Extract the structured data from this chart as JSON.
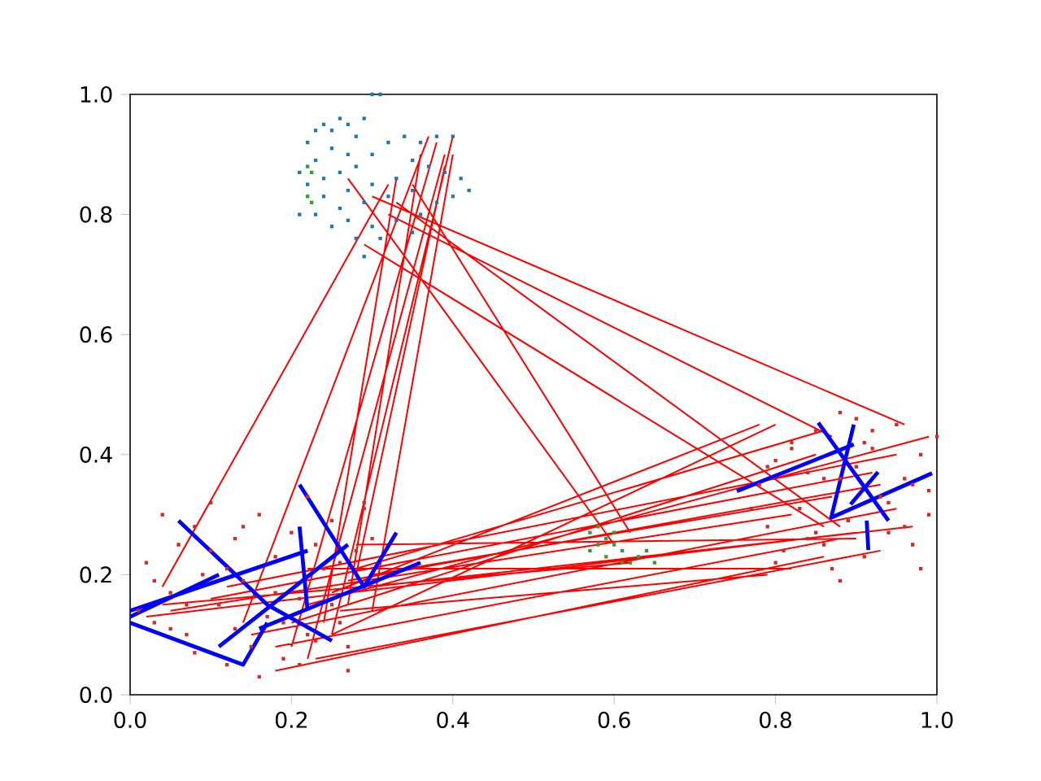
{
  "chart_data": {
    "type": "scatter",
    "xlim": [
      0,
      1
    ],
    "ylim": [
      0,
      1
    ],
    "xticks": [
      {
        "value": 0,
        "label": "0.0"
      },
      0.2,
      0.4,
      0.6,
      0.8,
      {
        "value": 1,
        "label": "1.0"
      }
    ],
    "yticks": [
      {
        "value": 0,
        "label": "0.0"
      },
      0.2,
      0.4,
      0.6,
      0.8,
      {
        "value": 1,
        "label": "1.0"
      }
    ],
    "series": [
      {
        "marker": "square",
        "color": "#1f77b4",
        "x": [
          0.3,
          0.31,
          0.22,
          0.23,
          0.24,
          0.25,
          0.26,
          0.27,
          0.28,
          0.29,
          0.25,
          0.27,
          0.23,
          0.21,
          0.24,
          0.26,
          0.28,
          0.3,
          0.32,
          0.34,
          0.36,
          0.38,
          0.4,
          0.35,
          0.37,
          0.39,
          0.41,
          0.33,
          0.3,
          0.27,
          0.24,
          0.22,
          0.21,
          0.23,
          0.26,
          0.29,
          0.32,
          0.35,
          0.38,
          0.4,
          0.42,
          0.33,
          0.3,
          0.27,
          0.35,
          0.31,
          0.28,
          0.36,
          0.25,
          0.29
        ],
        "values": [
          1.0,
          1.0,
          0.92,
          0.94,
          0.95,
          0.94,
          0.96,
          0.95,
          0.93,
          0.96,
          0.91,
          0.9,
          0.89,
          0.87,
          0.86,
          0.87,
          0.88,
          0.9,
          0.92,
          0.93,
          0.92,
          0.93,
          0.93,
          0.89,
          0.88,
          0.87,
          0.86,
          0.86,
          0.85,
          0.84,
          0.83,
          0.85,
          0.8,
          0.8,
          0.81,
          0.82,
          0.83,
          0.84,
          0.82,
          0.83,
          0.84,
          0.79,
          0.78,
          0.79,
          0.77,
          0.76,
          0.76,
          0.8,
          0.78,
          0.73
        ]
      },
      {
        "marker": "square",
        "color": "#d62728",
        "x": [
          0.01,
          0.02,
          0.03,
          0.04,
          0.05,
          0.06,
          0.07,
          0.08,
          0.09,
          0.1,
          0.11,
          0.12,
          0.13,
          0.14,
          0.15,
          0.16,
          0.17,
          0.18,
          0.19,
          0.2,
          0.21,
          0.22,
          0.23,
          0.24,
          0.25,
          0.26,
          0.27,
          0.28,
          0.29,
          0.3,
          0.31,
          0.05,
          0.08,
          0.12,
          0.16,
          0.19,
          0.23,
          0.27,
          0.3,
          0.1,
          0.14,
          0.18,
          0.22,
          0.26,
          0.03,
          0.07,
          0.13,
          0.21,
          0.25,
          0.29,
          0.78,
          0.79,
          0.8,
          0.81,
          0.82,
          0.83,
          0.84,
          0.85,
          0.86,
          0.87,
          0.88,
          0.89,
          0.9,
          0.91,
          0.92,
          0.93,
          0.94,
          0.95,
          0.96,
          0.97,
          0.98,
          0.99,
          1.0,
          0.77,
          0.8,
          0.84,
          0.88,
          0.92,
          0.96,
          0.99,
          0.82,
          0.86,
          0.9,
          0.94,
          0.98,
          0.79,
          0.85,
          0.91,
          0.97,
          0.88
        ],
        "values": [
          0.14,
          0.22,
          0.12,
          0.3,
          0.17,
          0.25,
          0.1,
          0.28,
          0.2,
          0.32,
          0.15,
          0.05,
          0.26,
          0.19,
          0.08,
          0.3,
          0.13,
          0.23,
          0.06,
          0.27,
          0.16,
          0.33,
          0.09,
          0.21,
          0.29,
          0.12,
          0.04,
          0.24,
          0.31,
          0.18,
          0.14,
          0.11,
          0.07,
          0.21,
          0.03,
          0.12,
          0.25,
          0.08,
          0.26,
          0.24,
          0.28,
          0.17,
          0.1,
          0.22,
          0.19,
          0.15,
          0.11,
          0.05,
          0.15,
          0.32,
          0.35,
          0.28,
          0.39,
          0.24,
          0.42,
          0.31,
          0.26,
          0.44,
          0.36,
          0.21,
          0.47,
          0.29,
          0.38,
          0.23,
          0.41,
          0.33,
          0.27,
          0.45,
          0.36,
          0.25,
          0.4,
          0.3,
          0.43,
          0.31,
          0.22,
          0.37,
          0.19,
          0.44,
          0.28,
          0.34,
          0.41,
          0.25,
          0.46,
          0.32,
          0.21,
          0.38,
          0.27,
          0.42,
          0.35,
          0.36
        ]
      },
      {
        "marker": "square",
        "color": "#2ca02c",
        "x": [
          0.22,
          0.225,
          0.22,
          0.225,
          0.57,
          0.58,
          0.59,
          0.6,
          0.61,
          0.59,
          0.62,
          0.63,
          0.64,
          0.6,
          0.58,
          0.61,
          0.65,
          0.57
        ],
        "values": [
          0.88,
          0.87,
          0.83,
          0.82,
          0.27,
          0.28,
          0.26,
          0.25,
          0.24,
          0.23,
          0.22,
          0.23,
          0.24,
          0.27,
          0.25,
          0.22,
          0.22,
          0.24
        ]
      },
      {
        "type": "line",
        "color": "#ff0000",
        "x": [
          0.04,
          0.32,
          null,
          0.14,
          0.37,
          null,
          0.2,
          0.38,
          null,
          0.22,
          0.39,
          null,
          0.25,
          0.4,
          null,
          0.27,
          0.36,
          null,
          0.28,
          0.39,
          null,
          0.24,
          0.33,
          null,
          0.3,
          0.4,
          null,
          0.3,
          0.96,
          null,
          0.32,
          0.87,
          null,
          0.27,
          0.6,
          null,
          0.33,
          0.88,
          null,
          0.35,
          0.62,
          null,
          0.29,
          0.86,
          null,
          0.02,
          0.9,
          null,
          0.05,
          0.82,
          null,
          0.1,
          0.92,
          null,
          0.15,
          0.95,
          null,
          0.18,
          0.88,
          null,
          0.2,
          0.85,
          null,
          0.22,
          0.99,
          null,
          0.25,
          0.78,
          null,
          0.27,
          0.93,
          null,
          0.28,
          0.86,
          null,
          0.3,
          0.97,
          null,
          0.23,
          0.93,
          null,
          0.18,
          0.86,
          null,
          0.12,
          0.95,
          null,
          0.25,
          0.8,
          null,
          0.28,
          0.9,
          null,
          0.04,
          0.62,
          null,
          0.22,
          0.82,
          null,
          0.3,
          0.87,
          null,
          0.26,
          0.79
        ],
        "values": [
          0.18,
          0.85,
          null,
          0.12,
          0.93,
          null,
          0.08,
          0.92,
          null,
          0.06,
          0.9,
          null,
          0.1,
          0.93,
          null,
          0.15,
          0.9,
          null,
          0.2,
          0.88,
          null,
          0.12,
          0.86,
          null,
          0.14,
          0.9,
          null,
          0.83,
          0.45,
          null,
          0.8,
          0.43,
          null,
          0.86,
          0.25,
          null,
          0.82,
          0.28,
          null,
          0.85,
          0.27,
          null,
          0.75,
          0.28,
          null,
          0.13,
          0.27,
          null,
          0.14,
          0.3,
          null,
          0.16,
          0.37,
          null,
          0.1,
          0.31,
          null,
          0.08,
          0.26,
          null,
          0.12,
          0.4,
          null,
          0.15,
          0.43,
          null,
          0.17,
          0.45,
          null,
          0.19,
          0.35,
          null,
          0.21,
          0.44,
          null,
          0.18,
          0.28,
          null,
          0.06,
          0.24,
          null,
          0.04,
          0.23,
          null,
          0.18,
          0.4,
          null,
          0.1,
          0.45,
          null,
          0.25,
          0.26,
          null,
          0.15,
          0.22,
          null,
          0.21,
          0.21,
          null,
          0.2,
          0.33,
          null,
          0.14,
          0.2
        ]
      },
      {
        "type": "line",
        "color": "#0000ff",
        "x": [
          0.0,
          0.14,
          0.17,
          null,
          0.0,
          0.22,
          null,
          0.06,
          0.17,
          0.25,
          null,
          0.21,
          0.29,
          0.33,
          null,
          0.11,
          0.0,
          null,
          0.11,
          0.27,
          null,
          0.21,
          0.22,
          null,
          0.16,
          0.36,
          null,
          0.853,
          0.94,
          null,
          0.897,
          0.869,
          0.994,
          null,
          0.927,
          0.893,
          null,
          0.752,
          0.897,
          null,
          0.913,
          0.915
        ],
        "values": [
          0.12,
          0.05,
          0.12,
          null,
          0.14,
          0.24,
          null,
          0.29,
          0.15,
          0.09,
          null,
          0.35,
          0.18,
          0.27,
          null,
          0.2,
          0.13,
          null,
          0.08,
          0.25,
          null,
          0.28,
          0.14,
          null,
          0.11,
          0.22,
          null,
          0.453,
          0.29,
          null,
          0.45,
          0.295,
          0.369,
          null,
          0.371,
          0.317,
          null,
          0.339,
          0.417,
          null,
          0.29,
          0.241
        ]
      }
    ]
  }
}
